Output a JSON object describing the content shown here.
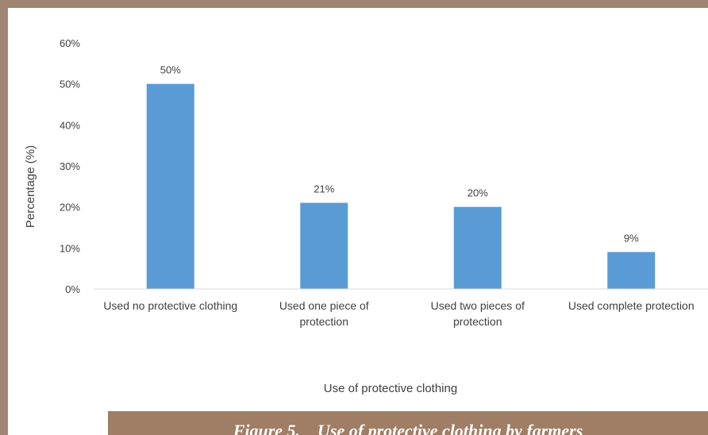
{
  "chart_data": {
    "type": "bar",
    "categories": [
      [
        "Used no protective clothing"
      ],
      [
        "Used one piece of",
        "protection"
      ],
      [
        "Used two pieces of",
        "protection"
      ],
      [
        "Used complete protection"
      ]
    ],
    "values": [
      50,
      21,
      20,
      9
    ],
    "data_labels": [
      "50%",
      "21%",
      "20%",
      "9%"
    ],
    "yticks": [
      "0%",
      "10%",
      "20%",
      "30%",
      "40%",
      "50%",
      "60%"
    ],
    "ylim": [
      0,
      60
    ],
    "ylabel": "Percentage (%)",
    "xlabel": "Use of protective clothing",
    "grid": false,
    "legend": "none",
    "bar_color": "#5b9bd5",
    "axis_color": "#d9d9d9"
  },
  "caption": {
    "text": "Figure 5.    Use of protective clothing by farmers"
  }
}
